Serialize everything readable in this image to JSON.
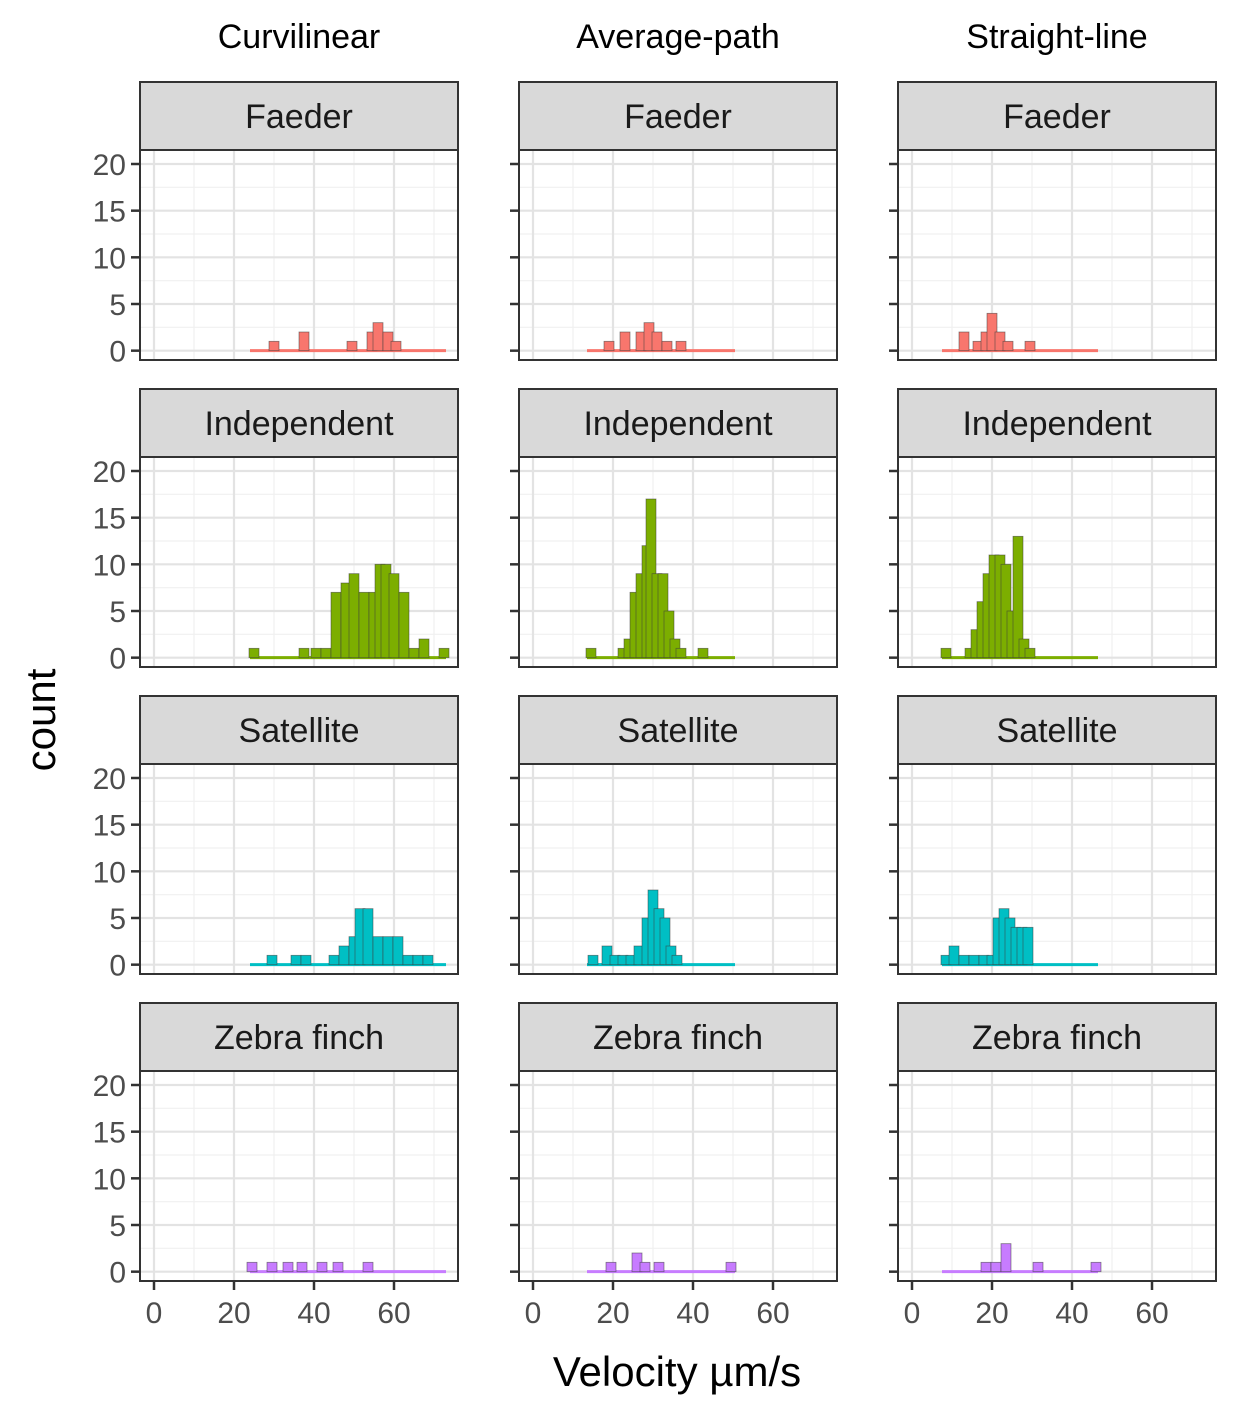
{
  "chart_data": {
    "type": "histogram",
    "facet_layout": "grid",
    "columns": [
      "Curvilinear",
      "Average-path",
      "Straight-line"
    ],
    "rows": [
      "Faeder",
      "Independent",
      "Satellite",
      "Zebra finch"
    ],
    "xlabel": "Velocity µm/s",
    "ylabel": "count",
    "x_ticks": [
      0,
      20,
      40,
      60
    ],
    "y_ticks": [
      0,
      5,
      10,
      15,
      20
    ],
    "xlim": [
      -3.5,
      76
    ],
    "ylim": [
      -1,
      21.5
    ],
    "grid": true,
    "legend": "none",
    "colors": {
      "Faeder": "#F8766D",
      "Independent": "#7CAE00",
      "Satellite": "#00BFC4",
      "Zebra finch": "#C77CFF"
    },
    "bin_width": 2.5,
    "ranges": {
      "Curvilinear": [
        24,
        73
      ],
      "Average-path": [
        13.5,
        50.5
      ],
      "Straight-line": [
        7.5,
        46.5
      ]
    },
    "panels": [
      {
        "column": "Curvilinear",
        "row": "Faeder",
        "bins": [
          {
            "x": 30,
            "count": 1
          },
          {
            "x": 37.5,
            "count": 2
          },
          {
            "x": 49.5,
            "count": 1
          },
          {
            "x": 54.5,
            "count": 2
          },
          {
            "x": 56,
            "count": 3
          },
          {
            "x": 58.5,
            "count": 2
          },
          {
            "x": 60.5,
            "count": 1
          }
        ]
      },
      {
        "column": "Average-path",
        "row": "Faeder",
        "bins": [
          {
            "x": 19,
            "count": 1
          },
          {
            "x": 23,
            "count": 2
          },
          {
            "x": 27,
            "count": 2
          },
          {
            "x": 29,
            "count": 3
          },
          {
            "x": 31,
            "count": 2
          },
          {
            "x": 33.5,
            "count": 1
          },
          {
            "x": 37,
            "count": 1
          }
        ]
      },
      {
        "column": "Straight-line",
        "row": "Faeder",
        "bins": [
          {
            "x": 13,
            "count": 2
          },
          {
            "x": 16.5,
            "count": 1
          },
          {
            "x": 18.5,
            "count": 2
          },
          {
            "x": 20,
            "count": 4
          },
          {
            "x": 22,
            "count": 2
          },
          {
            "x": 24,
            "count": 1
          },
          {
            "x": 29.5,
            "count": 1
          }
        ]
      },
      {
        "column": "Curvilinear",
        "row": "Independent",
        "bins": [
          {
            "x": 25,
            "count": 1
          },
          {
            "x": 37.5,
            "count": 1
          },
          {
            "x": 40.5,
            "count": 1
          },
          {
            "x": 43,
            "count": 1
          },
          {
            "x": 45.5,
            "count": 7
          },
          {
            "x": 48,
            "count": 8
          },
          {
            "x": 50,
            "count": 9
          },
          {
            "x": 52.5,
            "count": 7
          },
          {
            "x": 55,
            "count": 7
          },
          {
            "x": 56.5,
            "count": 10
          },
          {
            "x": 58,
            "count": 10
          },
          {
            "x": 60,
            "count": 9
          },
          {
            "x": 62.5,
            "count": 7
          },
          {
            "x": 65,
            "count": 1
          },
          {
            "x": 67.5,
            "count": 2
          },
          {
            "x": 72.5,
            "count": 1
          }
        ]
      },
      {
        "column": "Average-path",
        "row": "Independent",
        "bins": [
          {
            "x": 14.5,
            "count": 1
          },
          {
            "x": 22.5,
            "count": 1
          },
          {
            "x": 24,
            "count": 2
          },
          {
            "x": 25.5,
            "count": 7
          },
          {
            "x": 27,
            "count": 9
          },
          {
            "x": 28.5,
            "count": 12
          },
          {
            "x": 29.5,
            "count": 17
          },
          {
            "x": 31,
            "count": 9
          },
          {
            "x": 32.5,
            "count": 9
          },
          {
            "x": 34,
            "count": 5
          },
          {
            "x": 35.5,
            "count": 2
          },
          {
            "x": 37,
            "count": 1
          },
          {
            "x": 42.5,
            "count": 1
          }
        ]
      },
      {
        "column": "Straight-line",
        "row": "Independent",
        "bins": [
          {
            "x": 8.5,
            "count": 1
          },
          {
            "x": 14.5,
            "count": 1
          },
          {
            "x": 16,
            "count": 3
          },
          {
            "x": 17.5,
            "count": 6
          },
          {
            "x": 19,
            "count": 9
          },
          {
            "x": 20.5,
            "count": 11
          },
          {
            "x": 22,
            "count": 11
          },
          {
            "x": 23.5,
            "count": 10
          },
          {
            "x": 25,
            "count": 5
          },
          {
            "x": 26.5,
            "count": 13
          },
          {
            "x": 28,
            "count": 2
          },
          {
            "x": 29.5,
            "count": 1
          }
        ]
      },
      {
        "column": "Curvilinear",
        "row": "Satellite",
        "bins": [
          {
            "x": 29.5,
            "count": 1
          },
          {
            "x": 35.5,
            "count": 1
          },
          {
            "x": 38,
            "count": 1
          },
          {
            "x": 45,
            "count": 1
          },
          {
            "x": 47.5,
            "count": 2
          },
          {
            "x": 50,
            "count": 3
          },
          {
            "x": 51.5,
            "count": 6
          },
          {
            "x": 53.5,
            "count": 6
          },
          {
            "x": 56,
            "count": 3
          },
          {
            "x": 58.5,
            "count": 3
          },
          {
            "x": 61,
            "count": 3
          },
          {
            "x": 63.5,
            "count": 1
          },
          {
            "x": 66,
            "count": 1
          },
          {
            "x": 68.5,
            "count": 1
          }
        ]
      },
      {
        "column": "Average-path",
        "row": "Satellite",
        "bins": [
          {
            "x": 15,
            "count": 1
          },
          {
            "x": 18.5,
            "count": 2
          },
          {
            "x": 20.5,
            "count": 1
          },
          {
            "x": 22.5,
            "count": 1
          },
          {
            "x": 24.5,
            "count": 1
          },
          {
            "x": 26.5,
            "count": 2
          },
          {
            "x": 28.5,
            "count": 5
          },
          {
            "x": 30,
            "count": 8
          },
          {
            "x": 31.5,
            "count": 6
          },
          {
            "x": 33,
            "count": 5
          },
          {
            "x": 34.5,
            "count": 2
          },
          {
            "x": 36,
            "count": 1
          }
        ]
      },
      {
        "column": "Straight-line",
        "row": "Satellite",
        "bins": [
          {
            "x": 8.5,
            "count": 1
          },
          {
            "x": 10.5,
            "count": 2
          },
          {
            "x": 13,
            "count": 1
          },
          {
            "x": 15.5,
            "count": 1
          },
          {
            "x": 18,
            "count": 1
          },
          {
            "x": 20,
            "count": 1
          },
          {
            "x": 21.5,
            "count": 5
          },
          {
            "x": 23,
            "count": 6
          },
          {
            "x": 24.5,
            "count": 5
          },
          {
            "x": 26,
            "count": 4
          },
          {
            "x": 27.5,
            "count": 4
          },
          {
            "x": 29,
            "count": 4
          }
        ]
      },
      {
        "column": "Curvilinear",
        "row": "Zebra finch",
        "bins": [
          {
            "x": 24.5,
            "count": 1
          },
          {
            "x": 29.5,
            "count": 1
          },
          {
            "x": 33.5,
            "count": 1
          },
          {
            "x": 37,
            "count": 1
          },
          {
            "x": 42,
            "count": 1
          },
          {
            "x": 46,
            "count": 1
          },
          {
            "x": 53.5,
            "count": 1
          }
        ]
      },
      {
        "column": "Average-path",
        "row": "Zebra finch",
        "bins": [
          {
            "x": 19.5,
            "count": 1
          },
          {
            "x": 26,
            "count": 2
          },
          {
            "x": 28,
            "count": 1
          },
          {
            "x": 31.5,
            "count": 1
          },
          {
            "x": 49.5,
            "count": 1
          }
        ]
      },
      {
        "column": "Straight-line",
        "row": "Zebra finch",
        "bins": [
          {
            "x": 18.5,
            "count": 1
          },
          {
            "x": 21,
            "count": 1
          },
          {
            "x": 23.5,
            "count": 3
          },
          {
            "x": 31.5,
            "count": 1
          },
          {
            "x": 46,
            "count": 1
          }
        ]
      }
    ]
  }
}
